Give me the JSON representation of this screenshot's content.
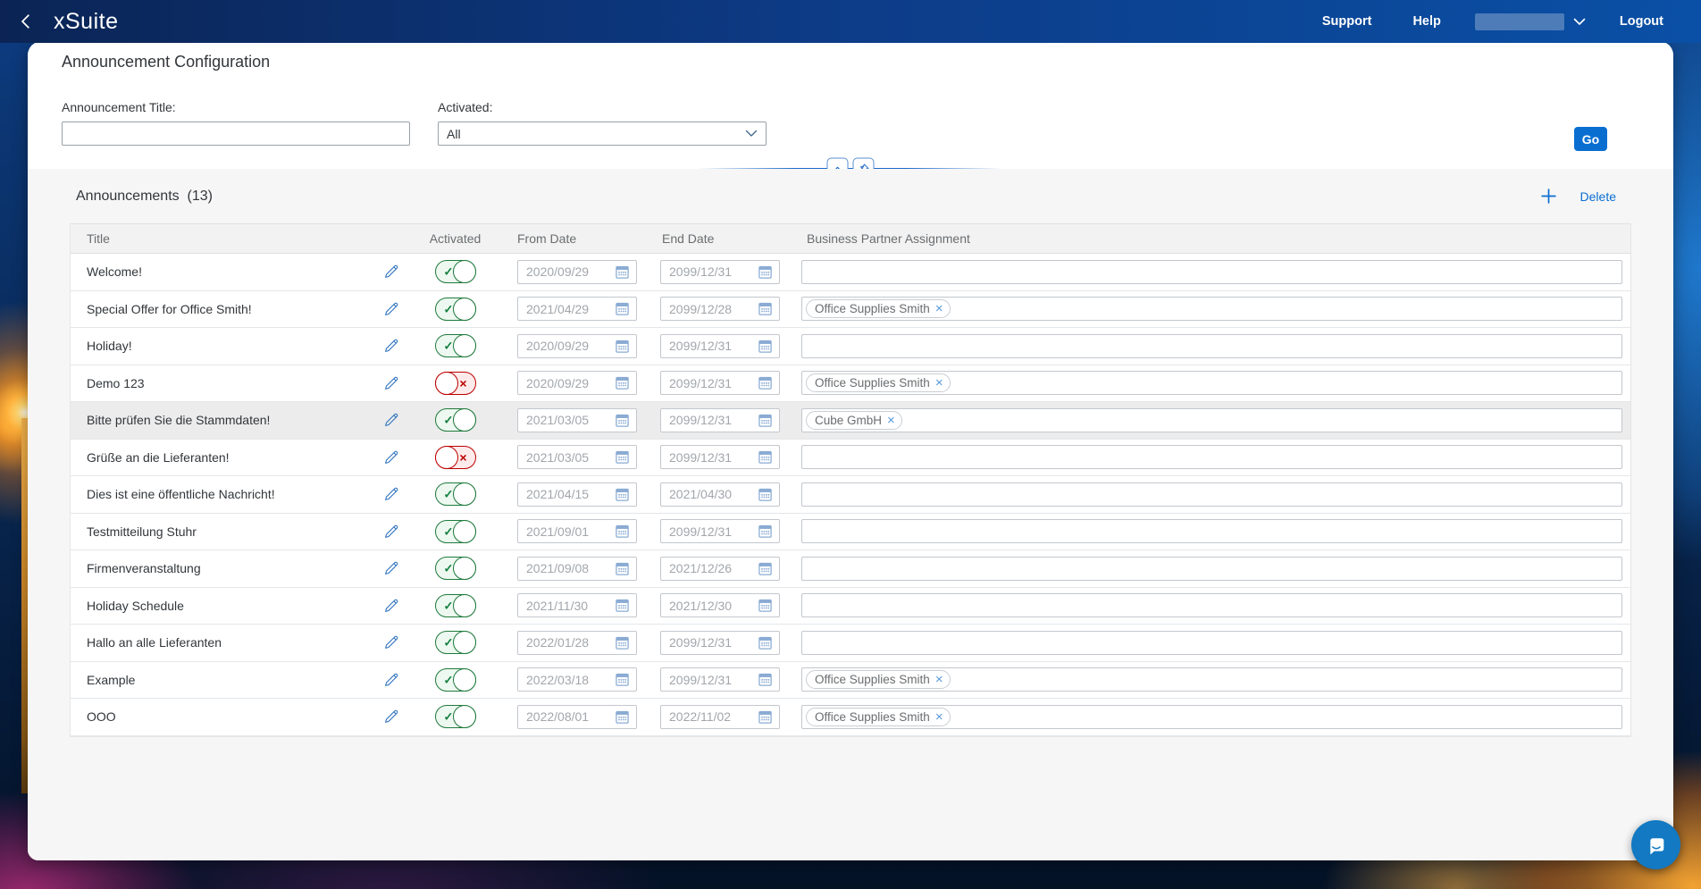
{
  "topbar": {
    "logo": "xSuite",
    "nav": {
      "support": "Support",
      "help": "Help",
      "logout": "Logout"
    }
  },
  "page": {
    "title": "Announcement Configuration"
  },
  "filter": {
    "title_label": "Announcement Title:",
    "title_value": "",
    "activated_label": "Activated:",
    "activated_value": "All",
    "go_label": "Go"
  },
  "table": {
    "section_title": "Announcements",
    "count_label": "(13)",
    "delete_label": "Delete",
    "columns": [
      "Title",
      "Activated",
      "From Date",
      "End Date",
      "Business Partner Assignment"
    ],
    "rows": [
      {
        "title": "Welcome!",
        "activated": true,
        "from": "2020/09/29",
        "end": "2099/12/31",
        "partners": []
      },
      {
        "title": "Special Offer for Office Smith!",
        "activated": true,
        "from": "2021/04/29",
        "end": "2099/12/28",
        "partners": [
          "Office Supplies Smith"
        ]
      },
      {
        "title": "Holiday!",
        "activated": true,
        "from": "2020/09/29",
        "end": "2099/12/31",
        "partners": []
      },
      {
        "title": "Demo 123",
        "activated": false,
        "from": "2020/09/29",
        "end": "2099/12/31",
        "partners": [
          "Office Supplies Smith"
        ]
      },
      {
        "title": "Bitte prüfen Sie die Stammdaten!",
        "activated": true,
        "from": "2021/03/05",
        "end": "2099/12/31",
        "partners": [
          "Cube GmbH"
        ],
        "selected": true
      },
      {
        "title": "Grüße an die Lieferanten!",
        "activated": false,
        "from": "2021/03/05",
        "end": "2099/12/31",
        "partners": []
      },
      {
        "title": "Dies ist eine öffentliche Nachricht!",
        "activated": true,
        "from": "2021/04/15",
        "end": "2021/04/30",
        "partners": []
      },
      {
        "title": "Testmitteilung Stuhr",
        "activated": true,
        "from": "2021/09/01",
        "end": "2099/12/31",
        "partners": []
      },
      {
        "title": "Firmenveranstaltung",
        "activated": true,
        "from": "2021/09/08",
        "end": "2021/12/26",
        "partners": []
      },
      {
        "title": "Holiday Schedule",
        "activated": true,
        "from": "2021/11/30",
        "end": "2021/12/30",
        "partners": []
      },
      {
        "title": "Hallo an alle Lieferanten",
        "activated": true,
        "from": "2022/01/28",
        "end": "2099/12/31",
        "partners": []
      },
      {
        "title": "Example",
        "activated": true,
        "from": "2022/03/18",
        "end": "2099/12/31",
        "partners": [
          "Office Supplies Smith"
        ]
      },
      {
        "title": "OOO",
        "activated": true,
        "from": "2022/08/01",
        "end": "2022/11/02",
        "partners": [
          "Office Supplies Smith"
        ]
      }
    ]
  },
  "colors": {
    "brand_blue": "#0a6ed1",
    "topbar_gradient_start": "#0b2455",
    "topbar_gradient_end": "#0a50a6",
    "positive_green": "#107e3e",
    "negative_red": "#bb0000",
    "content_bg": "#f6f6f6",
    "chat_bubble_blue": "#1279c2"
  }
}
